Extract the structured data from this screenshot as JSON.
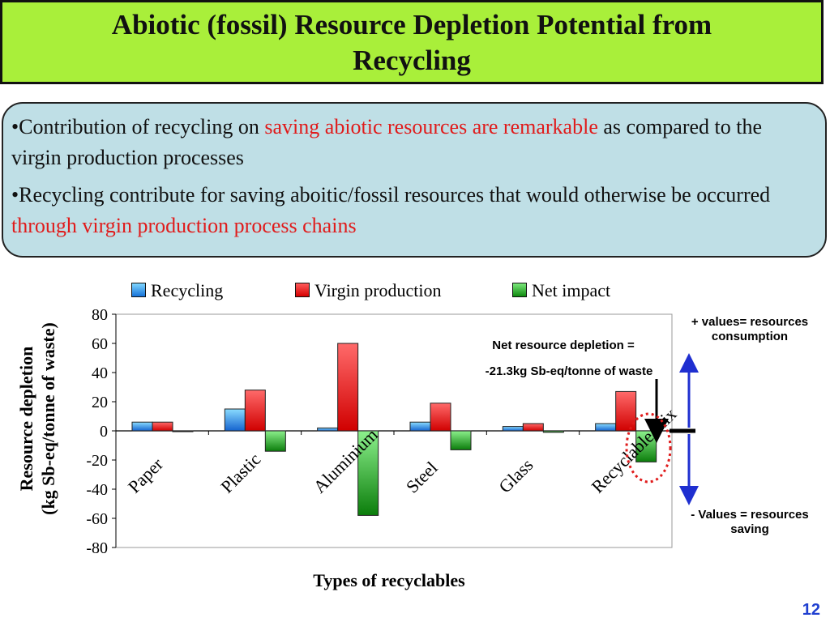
{
  "slide": {
    "title_line1": "Abiotic (fossil)  Resource Depletion Potential from",
    "title_line2": "Recycling",
    "page_number": "12"
  },
  "bullets": [
    {
      "prefix": "•Contribution of recycling on ",
      "highlight": "saving  abiotic resources are remarkable",
      "suffix": " as compared to the virgin production processes"
    },
    {
      "prefix": "•Recycling contribute for saving aboitic/fossil resources that would otherwise be occurred  ",
      "highlight": "through virgin production process chains",
      "suffix": ""
    }
  ],
  "annotations": {
    "net_depletion_line1": "Net resource depletion =",
    "net_depletion_line2": "-21.3kg Sb-eq/tonne of waste",
    "positive_line1": "+ values= resources",
    "positive_line2": "consumption",
    "negative_line1": "- Values = resources",
    "negative_line2": "saving"
  },
  "colors": {
    "title_bg": "#a9ef3a",
    "bullet_box_bg": "#bfdfe6",
    "highlight_text": "#e01b1b",
    "recycling": "#1f7fe0",
    "virgin_production": "#e81010",
    "net_impact": "#22aa22",
    "arrow_blue": "#1f2fd0",
    "dotted_circle": "#e01b1b",
    "page_number": "#1f3fd0"
  },
  "chart_data": {
    "type": "bar",
    "title": "",
    "xlabel": "Types of recyclables",
    "ylabel_line1": "Resource depletion",
    "ylabel_line2": "(kg Sb-eq/tonne of waste)",
    "ylim": [
      -80,
      80
    ],
    "yticks": [
      80,
      60,
      40,
      20,
      0,
      -20,
      -40,
      -60,
      -80
    ],
    "grid": false,
    "legend_position": "top",
    "categories": [
      "Paper",
      "Plastic",
      "Aluminium",
      "Steel",
      "Glass",
      "Recyclable mix"
    ],
    "series": [
      {
        "name": "Recycling",
        "values": [
          6,
          15,
          2,
          6,
          3,
          5
        ]
      },
      {
        "name": "Virgin production",
        "values": [
          6,
          28,
          60,
          19,
          5,
          27
        ]
      },
      {
        "name": "Net impact",
        "values": [
          0,
          -14,
          -58,
          -13,
          -1,
          -21.3
        ]
      }
    ]
  }
}
